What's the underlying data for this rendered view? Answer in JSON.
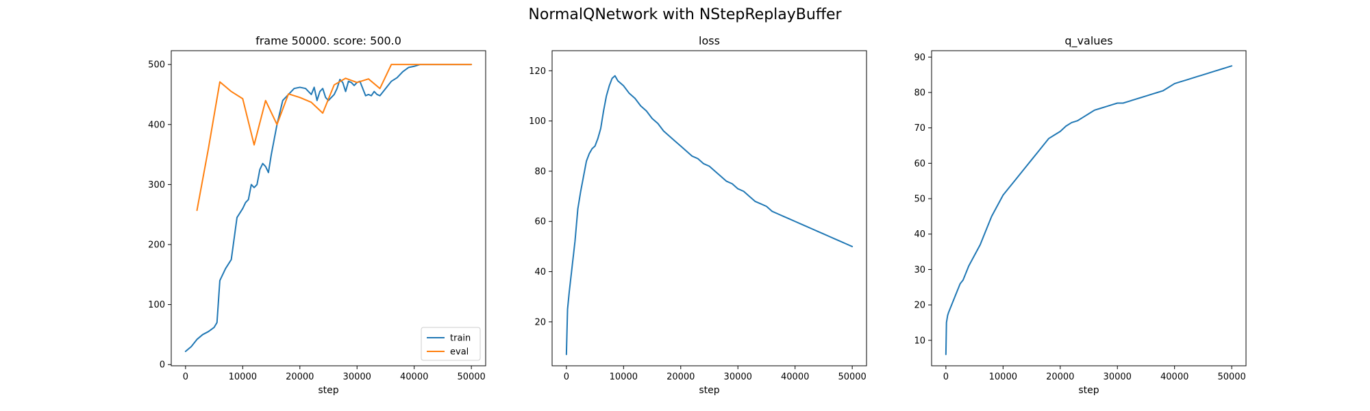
{
  "figure": {
    "suptitle": "NormalQNetwork with NStepReplayBuffer"
  },
  "colors": {
    "train": "#1f77b4",
    "eval": "#ff7f0e",
    "axes": "#000000",
    "background": "#ffffff"
  },
  "chart_data": [
    {
      "type": "line",
      "title": "frame 50000. score: 500.0",
      "xlabel": "step",
      "ylabel": "",
      "xlim": [
        -2500,
        52500
      ],
      "ylim": [
        -2,
        523
      ],
      "xticks": [
        0,
        10000,
        20000,
        30000,
        40000,
        50000
      ],
      "yticks": [
        0,
        100,
        200,
        300,
        400,
        500
      ],
      "grid": false,
      "legend": "lower-right",
      "series": [
        {
          "name": "train",
          "color": "#1f77b4",
          "x": [
            0,
            1000,
            2000,
            3000,
            4000,
            5000,
            5500,
            6000,
            7000,
            8000,
            9000,
            10000,
            10500,
            11000,
            11500,
            12000,
            12500,
            13000,
            13500,
            14000,
            14500,
            15000,
            16000,
            17000,
            18000,
            19000,
            20000,
            21000,
            22000,
            22500,
            23000,
            23500,
            24000,
            24500,
            25000,
            26000,
            26500,
            27000,
            27500,
            28000,
            28500,
            29000,
            29500,
            30000,
            30500,
            31000,
            31500,
            32000,
            32500,
            33000,
            33500,
            34000,
            35000,
            36000,
            37000,
            38000,
            39000,
            40000,
            41000,
            42000,
            45000,
            50000
          ],
          "values": [
            22,
            30,
            42,
            50,
            55,
            62,
            70,
            140,
            160,
            175,
            245,
            260,
            270,
            275,
            300,
            295,
            300,
            325,
            335,
            330,
            320,
            350,
            400,
            440,
            450,
            460,
            462,
            460,
            450,
            462,
            440,
            455,
            460,
            445,
            440,
            450,
            460,
            475,
            470,
            455,
            472,
            470,
            465,
            470,
            472,
            460,
            448,
            450,
            448,
            455,
            450,
            448,
            460,
            472,
            478,
            488,
            495,
            497,
            500,
            500,
            500,
            500
          ]
        },
        {
          "name": "eval",
          "color": "#ff7f0e",
          "x": [
            2000,
            4000,
            6000,
            8000,
            10000,
            12000,
            14000,
            16000,
            18000,
            20000,
            22000,
            24000,
            26000,
            28000,
            30000,
            32000,
            34000,
            36000,
            38000,
            40000,
            42000,
            44000,
            46000,
            48000,
            50000
          ],
          "values": [
            257,
            360,
            471,
            455,
            443,
            366,
            440,
            400,
            451,
            445,
            437,
            419,
            466,
            477,
            470,
            476,
            460,
            500,
            500,
            500,
            500,
            500,
            500,
            500,
            500
          ]
        }
      ]
    },
    {
      "type": "line",
      "title": "loss",
      "xlabel": "step",
      "ylabel": "",
      "xlim": [
        -2500,
        52500
      ],
      "ylim": [
        2.5,
        128
      ],
      "xticks": [
        0,
        10000,
        20000,
        30000,
        40000,
        50000
      ],
      "yticks": [
        20,
        40,
        60,
        80,
        100,
        120
      ],
      "grid": false,
      "series": [
        {
          "name": "",
          "color": "#1f77b4",
          "x": [
            0,
            200,
            500,
            1000,
            1500,
            2000,
            2500,
            3000,
            3500,
            4000,
            4500,
            5000,
            5500,
            6000,
            6500,
            7000,
            7500,
            8000,
            8500,
            9000,
            9500,
            10000,
            11000,
            12000,
            13000,
            14000,
            15000,
            16000,
            17000,
            18000,
            19000,
            20000,
            21000,
            22000,
            23000,
            24000,
            25000,
            26000,
            27000,
            28000,
            29000,
            30000,
            31000,
            32000,
            33000,
            34000,
            35000,
            36000,
            37000,
            38000,
            39000,
            40000,
            41000,
            42000,
            43000,
            44000,
            45000,
            46000,
            47000,
            48000,
            49000,
            50000
          ],
          "values": [
            7,
            25,
            32,
            42,
            52,
            65,
            72,
            78,
            84,
            87,
            89,
            90,
            93,
            97,
            104,
            110,
            114,
            117,
            118,
            116,
            115,
            114,
            111,
            109,
            106,
            104,
            101,
            99,
            96,
            94,
            92,
            90,
            88,
            86,
            85,
            83,
            82,
            80,
            78,
            76,
            75,
            73,
            72,
            70,
            68,
            67,
            66,
            64,
            63,
            62,
            61,
            60,
            59,
            58,
            57,
            56,
            55,
            54,
            53,
            52,
            51,
            50
          ]
        }
      ]
    },
    {
      "type": "line",
      "title": "q_values",
      "xlabel": "step",
      "ylabel": "",
      "xlim": [
        -2500,
        52500
      ],
      "ylim": [
        2.8,
        91.8
      ],
      "xticks": [
        0,
        10000,
        20000,
        30000,
        40000,
        50000
      ],
      "yticks": [
        10,
        20,
        30,
        40,
        50,
        60,
        70,
        80,
        90
      ],
      "grid": false,
      "series": [
        {
          "name": "",
          "color": "#1f77b4",
          "x": [
            0,
            100,
            300,
            500,
            1000,
            1500,
            2000,
            2500,
            3000,
            3500,
            4000,
            5000,
            6000,
            7000,
            8000,
            9000,
            10000,
            11000,
            12000,
            13000,
            14000,
            15000,
            16000,
            17000,
            18000,
            19000,
            20000,
            21000,
            22000,
            23000,
            24000,
            25000,
            26000,
            27000,
            28000,
            29000,
            30000,
            31000,
            32000,
            33000,
            34000,
            35000,
            36000,
            37000,
            38000,
            39000,
            40000,
            41000,
            42000,
            43000,
            44000,
            45000,
            46000,
            47000,
            48000,
            49000,
            50000
          ],
          "values": [
            6,
            15,
            17,
            18,
            20,
            22,
            24,
            26,
            27,
            29,
            31,
            34,
            37,
            41,
            45,
            48,
            51,
            53,
            55,
            57,
            59,
            61,
            63,
            65,
            67,
            68,
            69,
            70.5,
            71.5,
            72,
            73,
            74,
            75,
            75.5,
            76,
            76.5,
            77,
            77,
            77.5,
            78,
            78.5,
            79,
            79.5,
            80,
            80.5,
            81.5,
            82.5,
            83,
            83.5,
            84,
            84.5,
            85,
            85.5,
            86,
            86.5,
            87,
            87.5
          ]
        }
      ]
    }
  ]
}
